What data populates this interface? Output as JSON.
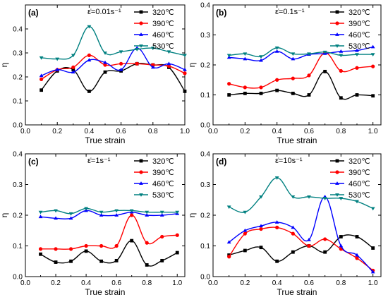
{
  "chart_data": [
    {
      "type": "line",
      "panel_label": "(a)",
      "strain_rate_label": "ε̇=0.01s⁻¹",
      "xlabel": "True strain",
      "ylabel": "η",
      "xlim": [
        0.0,
        1.0
      ],
      "ylim": [
        0.0,
        0.5
      ],
      "xticks": [
        "0.0",
        "0.2",
        "0.4",
        "0.6",
        "0.8",
        "1.0"
      ],
      "yticks": [
        "0.0",
        "0.1",
        "0.2",
        "0.3",
        "0.4"
      ],
      "x": [
        0.1,
        0.2,
        0.3,
        0.4,
        0.5,
        0.6,
        0.7,
        0.8,
        0.9,
        1.0
      ],
      "series": [
        {
          "name": "320℃",
          "color": "#000000",
          "marker": "square",
          "values": [
            0.145,
            0.225,
            0.23,
            0.14,
            0.22,
            0.225,
            0.255,
            0.25,
            0.24,
            0.14
          ]
        },
        {
          "name": "390℃",
          "color": "#ff0000",
          "marker": "circle",
          "values": [
            0.19,
            0.23,
            0.24,
            0.29,
            0.25,
            0.255,
            0.255,
            0.25,
            0.245,
            0.215
          ]
        },
        {
          "name": "460℃",
          "color": "#0000ff",
          "marker": "triangle-up",
          "values": [
            0.205,
            0.23,
            0.22,
            0.27,
            0.26,
            0.23,
            0.32,
            0.24,
            0.255,
            0.23
          ]
        },
        {
          "name": "530℃",
          "color": "#008080",
          "marker": "triangle-down",
          "values": [
            0.28,
            0.275,
            0.29,
            0.41,
            0.3,
            0.305,
            0.315,
            0.32,
            0.305,
            0.29
          ]
        }
      ]
    },
    {
      "type": "line",
      "panel_label": "(b)",
      "strain_rate_label": "ε̇=0.1s⁻¹",
      "xlabel": "True strain",
      "ylabel": "η",
      "xlim": [
        0.0,
        1.05
      ],
      "ylim": [
        0.0,
        0.4
      ],
      "xticks": [
        "0.0",
        "0.2",
        "0.4",
        "0.6",
        "0.8",
        "1.0"
      ],
      "yticks": [
        "0.0",
        "0.1",
        "0.2",
        "0.3",
        "0.4"
      ],
      "x": [
        0.1,
        0.2,
        0.3,
        0.4,
        0.5,
        0.6,
        0.7,
        0.8,
        0.9,
        1.0
      ],
      "series": [
        {
          "name": "320℃",
          "color": "#000000",
          "marker": "square",
          "values": [
            0.1,
            0.105,
            0.105,
            0.115,
            0.105,
            0.1,
            0.178,
            0.09,
            0.1,
            0.097
          ]
        },
        {
          "name": "390℃",
          "color": "#ff0000",
          "marker": "circle",
          "values": [
            0.137,
            0.125,
            0.125,
            0.15,
            0.155,
            0.165,
            0.24,
            0.18,
            0.19,
            0.195
          ]
        },
        {
          "name": "460℃",
          "color": "#0000ff",
          "marker": "triangle-up",
          "values": [
            0.225,
            0.22,
            0.215,
            0.245,
            0.22,
            0.235,
            0.238,
            0.245,
            0.248,
            0.26
          ]
        },
        {
          "name": "530℃",
          "color": "#008080",
          "marker": "triangle-down",
          "values": [
            0.232,
            0.237,
            0.228,
            0.257,
            0.237,
            0.237,
            0.243,
            0.232,
            0.235,
            0.235
          ]
        }
      ]
    },
    {
      "type": "line",
      "panel_label": "(c)",
      "strain_rate_label": "ε̇=1s⁻¹",
      "xlabel": "True strain",
      "ylabel": "η",
      "xlim": [
        0.0,
        1.05
      ],
      "ylim": [
        0.0,
        0.4
      ],
      "xticks": [
        "0.0",
        "0.2",
        "0.4",
        "0.6",
        "0.8",
        "1.0"
      ],
      "yticks": [
        "0.0",
        "0.1",
        "0.2",
        "0.3",
        "0.4"
      ],
      "x": [
        0.1,
        0.2,
        0.3,
        0.4,
        0.5,
        0.6,
        0.7,
        0.8,
        0.9,
        1.0
      ],
      "series": [
        {
          "name": "320℃",
          "color": "#000000",
          "marker": "square",
          "values": [
            0.073,
            0.047,
            0.05,
            0.083,
            0.05,
            0.052,
            0.117,
            0.038,
            0.052,
            0.078
          ]
        },
        {
          "name": "390℃",
          "color": "#ff0000",
          "marker": "circle",
          "values": [
            0.09,
            0.09,
            0.09,
            0.1,
            0.1,
            0.1,
            0.2,
            0.11,
            0.13,
            0.135
          ]
        },
        {
          "name": "460℃",
          "color": "#0000ff",
          "marker": "triangle-up",
          "values": [
            0.195,
            0.19,
            0.19,
            0.215,
            0.2,
            0.2,
            0.21,
            0.2,
            0.2,
            0.205
          ]
        },
        {
          "name": "530℃",
          "color": "#008080",
          "marker": "triangle-down",
          "values": [
            0.21,
            0.215,
            0.205,
            0.222,
            0.21,
            0.215,
            0.215,
            0.21,
            0.21,
            0.21
          ]
        }
      ]
    },
    {
      "type": "line",
      "panel_label": "(d)",
      "strain_rate_label": "ε̇=10s⁻¹",
      "xlabel": "True strain",
      "ylabel": "η",
      "xlim": [
        0.0,
        1.05
      ],
      "ylim": [
        0.0,
        0.4
      ],
      "xticks": [
        "0.0",
        "0.2",
        "0.4",
        "0.6",
        "0.8",
        "1.0"
      ],
      "yticks": [
        "0.0",
        "0.1",
        "0.2",
        "0.3",
        "0.4"
      ],
      "x": [
        0.1,
        0.2,
        0.3,
        0.4,
        0.5,
        0.6,
        0.7,
        0.8,
        0.9,
        1.0
      ],
      "series": [
        {
          "name": "320℃",
          "color": "#000000",
          "marker": "square",
          "values": [
            0.07,
            0.085,
            0.095,
            0.05,
            0.08,
            0.1,
            0.08,
            0.13,
            0.13,
            0.093
          ]
        },
        {
          "name": "390℃",
          "color": "#ff0000",
          "marker": "circle",
          "values": [
            0.065,
            0.14,
            0.155,
            0.16,
            0.14,
            0.1,
            0.122,
            0.09,
            0.06,
            0.02
          ]
        },
        {
          "name": "460℃",
          "color": "#0000ff",
          "marker": "triangle-up",
          "values": [
            0.112,
            0.15,
            0.165,
            0.177,
            0.16,
            0.12,
            0.26,
            0.1,
            0.07,
            0.015
          ]
        },
        {
          "name": "530℃",
          "color": "#008080",
          "marker": "triangle-down",
          "values": [
            0.227,
            0.21,
            0.26,
            0.322,
            0.26,
            0.26,
            0.255,
            0.255,
            0.245,
            0.222
          ]
        }
      ]
    }
  ]
}
